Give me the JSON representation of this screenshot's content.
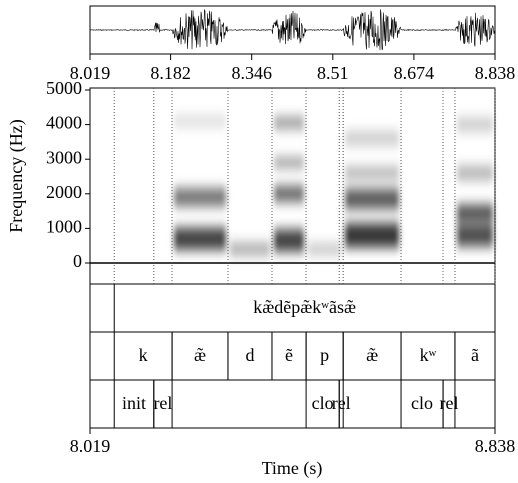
{
  "chart_data": {
    "type": "spectrogram",
    "xlim": [
      8.019,
      8.838
    ],
    "xticks": [
      8.019,
      8.182,
      8.346,
      8.51,
      8.674,
      8.838
    ],
    "ylim": [
      0,
      5000
    ],
    "yticks": [
      0,
      1000,
      2000,
      3000,
      4000,
      5000
    ],
    "xlabel": "Time (s)",
    "ylabel": "Frequency (Hz)",
    "tiers": [
      {
        "intervals": [
          {
            "label": "kæ̃dẽpæ̃kʷãsæ̃",
            "start": 8.068,
            "end": 8.838
          }
        ]
      },
      {
        "intervals": [
          {
            "label": "k",
            "start": 8.068,
            "end": 8.185
          },
          {
            "label": "æ̃",
            "start": 8.185,
            "end": 8.298
          },
          {
            "label": "d",
            "start": 8.298,
            "end": 8.387
          },
          {
            "label": "ẽ",
            "start": 8.387,
            "end": 8.456
          },
          {
            "label": "p",
            "start": 8.456,
            "end": 8.531
          },
          {
            "label": "æ̃",
            "start": 8.531,
            "end": 8.648
          },
          {
            "label": "kʷ",
            "start": 8.648,
            "end": 8.757
          },
          {
            "label": "ã",
            "start": 8.757,
            "end": 8.838
          }
        ]
      },
      {
        "intervals": [
          {
            "label": "init",
            "start": 8.068,
            "end": 8.148
          },
          {
            "label": "rel",
            "start": 8.148,
            "end": 8.185
          },
          {
            "label": "clo",
            "start": 8.456,
            "end": 8.523
          },
          {
            "label": "rel",
            "start": 8.523,
            "end": 8.531
          },
          {
            "label": "clo",
            "start": 8.648,
            "end": 8.733
          },
          {
            "label": "rel",
            "start": 8.733,
            "end": 8.757
          }
        ]
      }
    ]
  }
}
